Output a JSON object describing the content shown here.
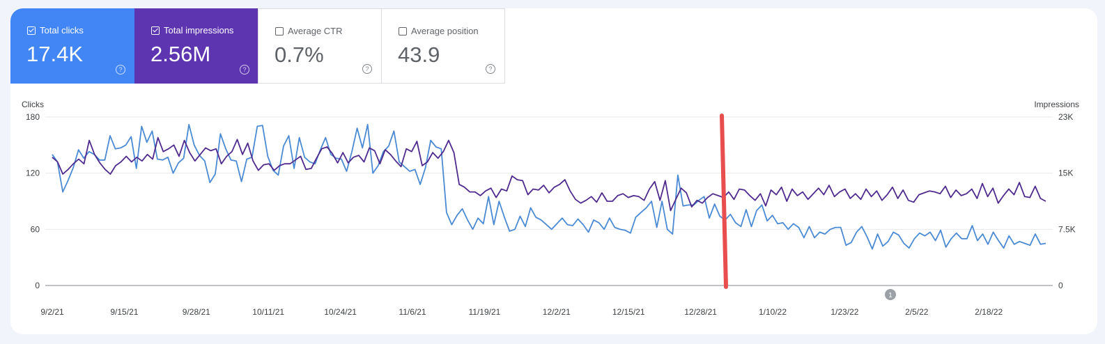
{
  "metrics": [
    {
      "label": "Total clicks",
      "value": "17.4K",
      "checked": true,
      "color": "#4285f4"
    },
    {
      "label": "Total impressions",
      "value": "2.56M",
      "checked": true,
      "color": "#5e35b1"
    },
    {
      "label": "Average CTR",
      "value": "0.7%",
      "checked": false,
      "color": "#ffffff"
    },
    {
      "label": "Average position",
      "value": "43.9",
      "checked": false,
      "color": "#ffffff"
    }
  ],
  "help_glyph": "?",
  "chart_data": {
    "type": "line",
    "x_ticks": [
      "9/2/21",
      "9/15/21",
      "9/28/21",
      "10/11/21",
      "10/24/21",
      "11/6/21",
      "11/19/21",
      "12/2/21",
      "12/15/21",
      "12/28/21",
      "1/10/22",
      "1/23/22",
      "2/5/22",
      "2/18/22"
    ],
    "xlim": [
      "9/2/21",
      "3/1/22"
    ],
    "left_axis": {
      "label": "Clicks",
      "ticks": [
        "180",
        "120",
        "60",
        "0"
      ],
      "range": [
        0,
        180
      ]
    },
    "right_axis": {
      "label": "Impressions",
      "ticks": [
        "23K",
        "15K",
        "7.5K",
        "0"
      ],
      "range": [
        0,
        22500
      ]
    },
    "grid": true,
    "series": [
      {
        "name": "Total clicks",
        "axis": "left",
        "color": "#4a8ad4",
        "values": [
          140,
          132,
          100,
          112,
          126,
          145,
          136,
          143,
          140,
          134,
          134,
          160,
          146,
          147,
          150,
          159,
          125,
          170,
          153,
          165,
          135,
          134,
          137,
          120,
          131,
          136,
          172,
          150,
          139,
          133,
          110,
          119,
          162,
          146,
          134,
          133,
          111,
          135,
          137,
          170,
          171,
          138,
          123,
          118,
          149,
          160,
          125,
          158,
          137,
          132,
          130,
          145,
          158,
          140,
          136,
          135,
          122,
          143,
          168,
          147,
          172,
          120,
          128,
          143,
          149,
          165,
          132,
          127,
          122,
          124,
          108,
          126,
          155,
          148,
          146,
          78,
          65,
          75,
          82,
          70,
          60,
          72,
          66,
          95,
          65,
          90,
          73,
          58,
          60,
          74,
          63,
          83,
          73,
          70,
          65,
          60,
          66,
          72,
          65,
          64,
          71,
          65,
          57,
          70,
          67,
          60,
          72,
          62,
          60,
          59,
          56,
          73,
          78,
          83,
          90,
          62,
          90,
          60,
          55,
          118,
          85,
          86,
          86,
          91,
          95,
          72,
          87,
          74,
          70,
          76,
          67,
          63,
          81,
          63,
          80,
          86,
          69,
          75,
          66,
          67,
          60,
          66,
          62,
          51,
          63,
          51,
          57,
          55,
          60,
          62,
          62,
          43,
          46,
          57,
          63,
          52,
          39,
          55,
          42,
          47,
          57,
          54,
          45,
          40,
          50,
          56,
          53,
          57,
          48,
          59,
          41,
          50,
          56,
          50,
          50,
          64,
          48,
          55,
          44,
          57,
          48,
          40,
          53,
          44,
          47,
          45,
          43,
          55,
          44,
          45
        ],
        "y": "sampled ~daily, values read off chart"
      },
      {
        "name": "Total impressions",
        "axis": "left",
        "color": "#4e2a8e",
        "values": [
          137,
          132,
          119,
          124,
          130,
          135,
          130,
          155,
          140,
          131,
          124,
          119,
          128,
          132,
          138,
          132,
          137,
          133,
          140,
          135,
          158,
          143,
          146,
          150,
          138,
          155,
          142,
          133,
          140,
          147,
          144,
          146,
          130,
          138,
          143,
          156,
          140,
          152,
          133,
          123,
          129,
          130,
          123,
          128,
          130,
          130,
          134,
          138,
          124,
          125,
          136,
          146,
          148,
          141,
          131,
          142,
          131,
          137,
          139,
          132,
          147,
          144,
          130,
          145,
          140,
          133,
          127,
          146,
          143,
          154,
          128,
          132,
          142,
          136,
          143,
          155,
          142,
          108,
          105,
          100,
          100,
          96,
          101,
          104,
          94,
          103,
          101,
          117,
          113,
          112,
          97,
          103,
          102,
          107,
          99,
          105,
          108,
          113,
          101,
          92,
          88,
          91,
          95,
          89,
          99,
          90,
          90,
          96,
          98,
          94,
          96,
          95,
          91,
          103,
          111,
          91,
          112,
          80,
          92,
          104,
          99,
          84,
          91,
          88,
          94,
          98,
          96,
          94,
          100,
          92,
          103,
          102,
          96,
          91,
          98,
          85,
          102,
          97,
          105,
          90,
          103,
          96,
          100,
          92,
          98,
          104,
          97,
          107,
          95,
          100,
          103,
          93,
          98,
          92,
          103,
          95,
          101,
          91,
          97,
          105,
          93,
          102,
          91,
          89,
          97,
          99,
          101,
          100,
          98,
          106,
          94,
          102,
          96,
          98,
          103,
          93,
          109,
          95,
          104,
          88,
          96,
          103,
          97,
          110,
          95,
          94,
          106,
          93,
          90
        ],
        "note": "Impressions plotted on right axis scale, shown normalized to left axis"
      }
    ],
    "annotations": [
      {
        "type": "marker",
        "label": "1",
        "x": "1/30/22"
      }
    ],
    "overlay": {
      "type": "vertical-line",
      "x": "1/1/22",
      "color": "#e84e4e"
    }
  }
}
